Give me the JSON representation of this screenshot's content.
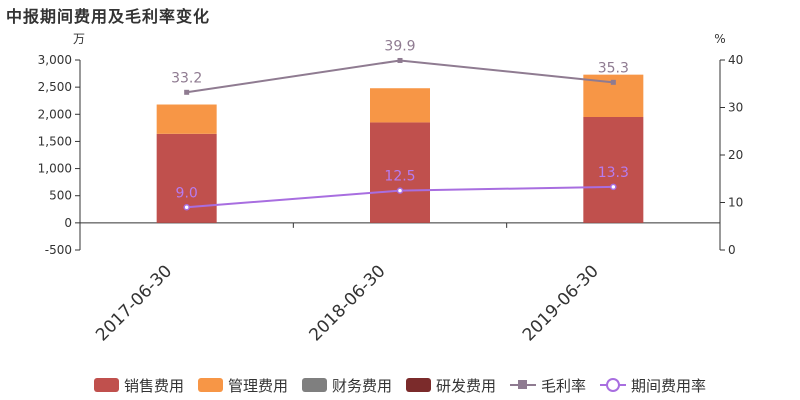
{
  "title": "中报期间费用及毛利率变化",
  "left_unit": "万",
  "right_unit": "%",
  "chart_data": {
    "type": "bar+line",
    "categories": [
      "2017-06-30",
      "2018-06-30",
      "2019-06-30"
    ],
    "left_axis": {
      "ylim": [
        -500,
        3000
      ],
      "ticks": [
        "-500",
        "0",
        "500",
        "1,000",
        "1,500",
        "2,000",
        "2,500",
        "3,000"
      ],
      "tick_values": [
        -500,
        0,
        500,
        1000,
        1500,
        2000,
        2500,
        3000
      ]
    },
    "right_axis": {
      "ylim": [
        0,
        40
      ],
      "ticks": [
        "0",
        "10",
        "20",
        "30",
        "40"
      ],
      "tick_values": [
        0,
        10,
        20,
        30,
        40
      ]
    },
    "bar_series": [
      {
        "name": "销售费用",
        "color": "#c0504d",
        "values": [
          1640,
          1850,
          1950
        ]
      },
      {
        "name": "管理费用",
        "color": "#f79646",
        "values": [
          540,
          630,
          780
        ]
      },
      {
        "name": "财务费用",
        "color": "#7f7f7f",
        "values": [
          0,
          0,
          0
        ]
      },
      {
        "name": "研发费用",
        "color": "#7b2b2b",
        "values": [
          0,
          0,
          0
        ]
      }
    ],
    "line_series": [
      {
        "name": "毛利率",
        "color": "#8f7b91",
        "marker": "square",
        "values": [
          33.2,
          39.9,
          35.3
        ],
        "labels": [
          "33.2",
          "39.9",
          "35.3"
        ],
        "label_color": "#8f7b91"
      },
      {
        "name": "期间费用率",
        "color": "#a86ee0",
        "marker": "circle",
        "values": [
          9.0,
          12.5,
          13.3
        ],
        "labels": [
          "9.0",
          "12.5",
          "13.3"
        ],
        "label_color": "#b67cf0"
      }
    ]
  },
  "legend": [
    {
      "label": "销售费用",
      "kind": "rect",
      "color": "#c0504d"
    },
    {
      "label": "管理费用",
      "kind": "rect",
      "color": "#f79646"
    },
    {
      "label": "财务费用",
      "kind": "rect",
      "color": "#7f7f7f"
    },
    {
      "label": "研发费用",
      "kind": "rect",
      "color": "#7b2b2b"
    },
    {
      "label": "毛利率",
      "kind": "line-square",
      "color": "#8f7b91"
    },
    {
      "label": "期间费用率",
      "kind": "line-circle",
      "color": "#a86ee0"
    }
  ]
}
